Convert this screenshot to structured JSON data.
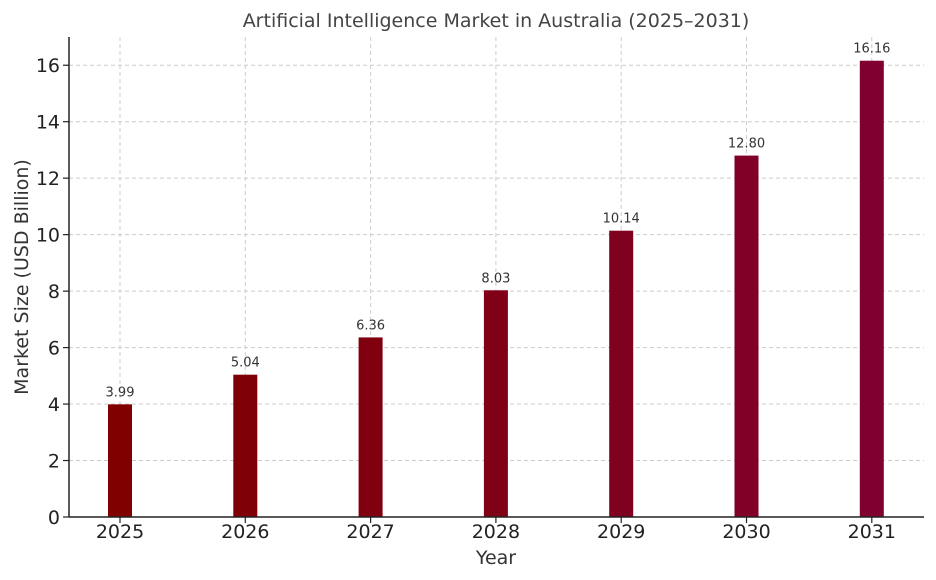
{
  "chart_data": {
    "type": "bar",
    "title": "Artificial Intelligence Market in Australia (2025–2031)",
    "xlabel": "Year",
    "ylabel": "Market Size (USD Billion)",
    "categories": [
      "2025",
      "2026",
      "2027",
      "2028",
      "2029",
      "2030",
      "2031"
    ],
    "values": [
      3.99,
      5.04,
      6.36,
      8.03,
      10.14,
      12.8,
      16.16
    ],
    "data_labels": [
      "3.99",
      "5.04",
      "6.36",
      "8.03",
      "10.14",
      "12.80",
      "16.16"
    ],
    "ylim": [
      0,
      17
    ],
    "yticks": [
      0,
      2,
      4,
      6,
      8,
      10,
      12,
      14,
      16
    ],
    "grid": true,
    "colors": [
      "#800000",
      "#800008",
      "#800010",
      "#800018",
      "#800020",
      "#800028",
      "#800030"
    ]
  }
}
